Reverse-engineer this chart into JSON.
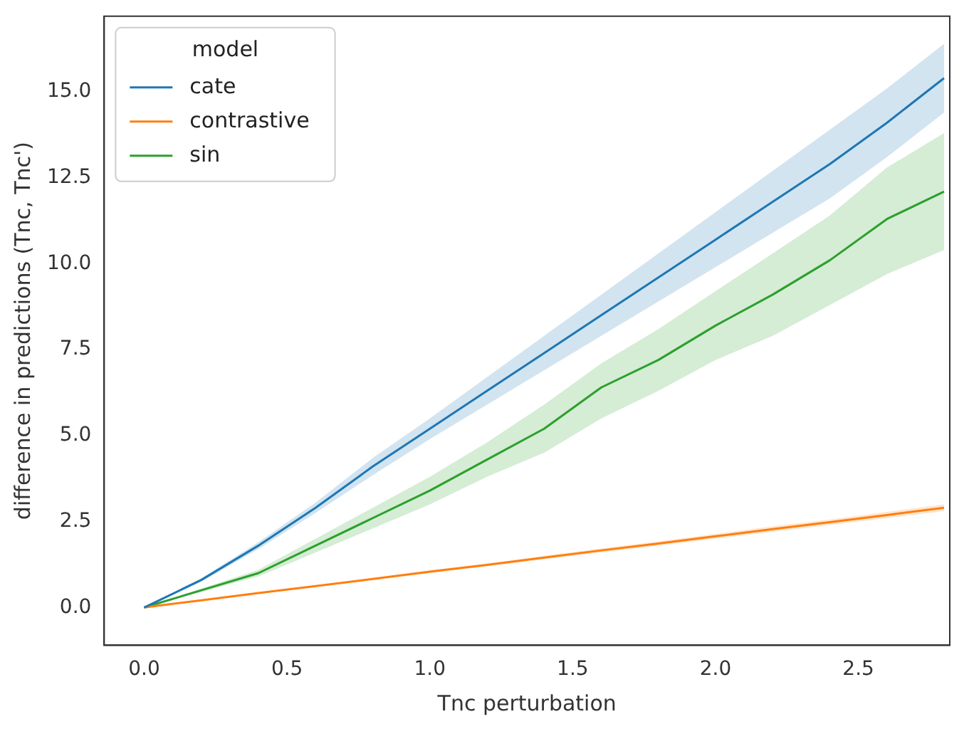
{
  "chart_data": {
    "type": "line",
    "xlabel": "Tnc perturbation",
    "ylabel": "difference in predictions (Tnc, Tnc')",
    "legend_title": "model",
    "legend": "top left",
    "grid": false,
    "x": [
      0,
      0.2,
      0.4,
      0.6,
      0.8,
      1.0,
      1.2,
      1.4,
      1.6,
      1.8,
      2.0,
      2.2,
      2.4,
      2.6,
      2.8
    ],
    "series": [
      {
        "name": "cate",
        "color": "#1f77b4",
        "values": [
          0,
          0.8,
          1.8,
          2.9,
          4.1,
          5.2,
          6.3,
          7.4,
          8.5,
          9.6,
          10.7,
          11.8,
          12.9,
          14.1,
          15.4
        ],
        "lower": [
          0,
          0.75,
          1.7,
          2.75,
          3.85,
          4.9,
          5.9,
          6.9,
          7.9,
          8.9,
          9.9,
          10.9,
          11.9,
          13.1,
          14.4
        ],
        "upper": [
          0,
          0.85,
          1.9,
          3.05,
          4.35,
          5.5,
          6.7,
          7.9,
          9.1,
          10.3,
          11.5,
          12.7,
          13.9,
          15.1,
          16.4
        ]
      },
      {
        "name": "contrastive",
        "color": "#ff7f0e",
        "values": [
          0,
          0.21,
          0.42,
          0.62,
          0.83,
          1.04,
          1.24,
          1.45,
          1.66,
          1.86,
          2.07,
          2.28,
          2.48,
          2.69,
          2.9
        ],
        "lower": [
          0,
          0.2,
          0.4,
          0.6,
          0.8,
          1.0,
          1.2,
          1.4,
          1.6,
          1.8,
          2.0,
          2.2,
          2.4,
          2.6,
          2.8
        ],
        "upper": [
          0,
          0.22,
          0.44,
          0.64,
          0.86,
          1.08,
          1.28,
          1.5,
          1.72,
          1.92,
          2.14,
          2.36,
          2.56,
          2.78,
          3.0
        ]
      },
      {
        "name": "sin",
        "color": "#2ca02c",
        "values": [
          0,
          0.5,
          1.0,
          1.8,
          2.6,
          3.4,
          4.3,
          5.2,
          6.4,
          7.2,
          8.2,
          9.1,
          10.1,
          11.3,
          12.1
        ],
        "lower": [
          0,
          0.45,
          0.9,
          1.6,
          2.3,
          3.0,
          3.8,
          4.5,
          5.5,
          6.3,
          7.2,
          7.9,
          8.8,
          9.7,
          10.4
        ],
        "upper": [
          0,
          0.55,
          1.1,
          2.0,
          2.9,
          3.8,
          4.8,
          5.9,
          7.1,
          8.1,
          9.2,
          10.3,
          11.4,
          12.8,
          13.8
        ]
      }
    ],
    "xlim": [
      -0.14,
      2.82
    ],
    "ylim": [
      -1.1,
      17.2
    ],
    "xticks": [
      {
        "value": 0,
        "label": "0.0"
      },
      {
        "value": 0.5,
        "label": "0.5"
      },
      {
        "value": 1,
        "label": "1.0"
      },
      {
        "value": 1.5,
        "label": "1.5"
      },
      {
        "value": 2,
        "label": "2.0"
      },
      {
        "value": 2.5,
        "label": "2.5"
      }
    ],
    "yticks": [
      {
        "value": 0,
        "label": "0.0"
      },
      {
        "value": 2.5,
        "label": "2.5"
      },
      {
        "value": 5,
        "label": "5.0"
      },
      {
        "value": 7.5,
        "label": "7.5"
      },
      {
        "value": 10,
        "label": "10.0"
      },
      {
        "value": 12.5,
        "label": "12.5"
      },
      {
        "value": 15,
        "label": "15.0"
      }
    ]
  }
}
